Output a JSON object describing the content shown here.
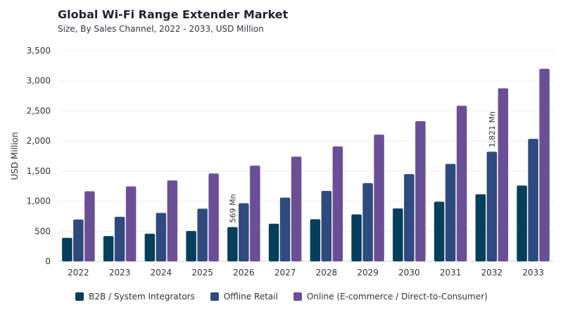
{
  "header": {
    "title": "Global Wi-Fi Range Extender Market",
    "subtitle": "Size, By Sales Channel, 2022 - 2033, USD Million"
  },
  "chart_data": {
    "type": "bar",
    "ylabel": "USD Million",
    "ylim": [
      0,
      3500
    ],
    "yticks": [
      0,
      500,
      1000,
      1500,
      2000,
      2500,
      3000,
      3500
    ],
    "ytick_labels": [
      "0",
      "500",
      "1,000",
      "1,500",
      "2,000",
      "2,500",
      "3,000",
      "3,500"
    ],
    "grid": true,
    "legend_position": "bottom-center",
    "categories": [
      "2022",
      "2023",
      "2024",
      "2025",
      "2026",
      "2027",
      "2028",
      "2029",
      "2030",
      "2031",
      "2032",
      "2033"
    ],
    "series": [
      {
        "name": "B2B / System Integrators",
        "color": "#053f5c",
        "values": [
          390,
          420,
          460,
          505,
          569,
          625,
          700,
          780,
          880,
          990,
          1115,
          1260
        ]
      },
      {
        "name": "Offline Retail",
        "color": "#2f4a7e",
        "values": [
          695,
          740,
          805,
          875,
          965,
          1060,
          1170,
          1300,
          1450,
          1620,
          1821,
          2035
        ]
      },
      {
        "name": "Online (E-commerce / Direct-to-Consumer)",
        "color": "#6b4f96",
        "values": [
          1165,
          1245,
          1345,
          1460,
          1590,
          1740,
          1910,
          2105,
          2330,
          2585,
          2875,
          3200
        ]
      }
    ],
    "annotations": [
      {
        "category": "2026",
        "series": 0,
        "text": "569 Mn"
      },
      {
        "category": "2032",
        "series": 1,
        "text": "1,821 Mn"
      }
    ]
  }
}
